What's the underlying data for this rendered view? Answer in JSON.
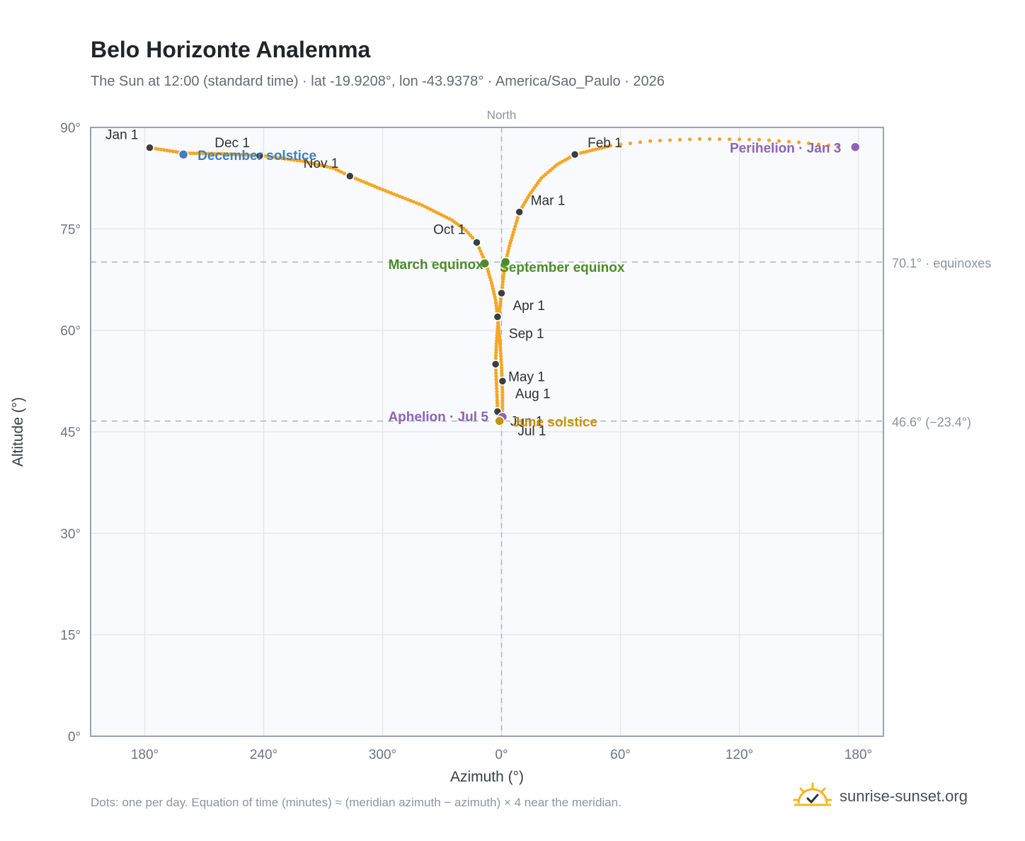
{
  "header": {
    "title": "Belo Horizonte Analemma",
    "subtitle": "The Sun at 12:00 (standard time) · lat -19.9208°, lon -43.9378° · America/Sao_Paulo · 2026"
  },
  "footer": {
    "note": "Dots: one per day. Equation of time (minutes) ≈ (meridian azimuth − azimuth) × 4 near the meridian.",
    "brand": "sunrise-sunset.org"
  },
  "colors": {
    "path": "#f5a623",
    "month_marker": "#3a3d42",
    "equinox": "#4e8b2b",
    "solstice_june": "#c9920a",
    "solstice_december": "#3f7fbf",
    "apsis": "#8e63b8",
    "plot_bg": "#f8fafd",
    "grid": "#e3e8ee",
    "frame": "#9aa3ae"
  },
  "chart_data": {
    "type": "scatter",
    "x_axis": {
      "label": "Azimuth (°)",
      "ticks": [
        "180°",
        "240°",
        "300°",
        "0°",
        "60°",
        "120°",
        "180°"
      ],
      "top_label": "North",
      "note": "azimuth measured through north; left of North = 180°–360°, right = 0°–180°"
    },
    "y_axis": {
      "label": "Altitude (°)",
      "ticks": [
        "0°",
        "15°",
        "30°",
        "45°",
        "60°",
        "75°",
        "90°"
      ],
      "range": [
        0,
        90
      ]
    },
    "reference_lines": [
      {
        "altitude": 70.1,
        "label": "70.1° · equinoxes"
      },
      {
        "altitude": 46.6,
        "label": "46.6° (−23.4°)"
      }
    ],
    "month_markers": [
      {
        "label": "Jan 1",
        "azimuth": 182.5,
        "altitude": 87.0
      },
      {
        "label": "Feb 1",
        "azimuth": 37.0,
        "altitude": 86.0
      },
      {
        "label": "Mar 1",
        "azimuth": 9.0,
        "altitude": 77.5
      },
      {
        "label": "Apr 1",
        "azimuth": 0.0,
        "altitude": 65.5
      },
      {
        "label": "May 1",
        "azimuth": 357.0,
        "altitude": 55.0
      },
      {
        "label": "Jun 1",
        "azimuth": 358.0,
        "altitude": 48.0
      },
      {
        "label": "Jul 1",
        "azimuth": 0.3,
        "altitude": 47.0
      },
      {
        "label": "Aug 1",
        "azimuth": 0.5,
        "altitude": 52.5
      },
      {
        "label": "Sep 1",
        "azimuth": 358.0,
        "altitude": 62.0
      },
      {
        "label": "Oct 1",
        "azimuth": 347.5,
        "altitude": 73.0
      },
      {
        "label": "Nov 1",
        "azimuth": 283.5,
        "altitude": 82.8
      },
      {
        "label": "Dec 1",
        "azimuth": 238.0,
        "altitude": 85.8
      }
    ],
    "events": [
      {
        "label": "Perihelion · Jan 3",
        "azimuth": 178.5,
        "altitude": 87.1,
        "kind": "apsis"
      },
      {
        "label": "Aphelion · Jul 5",
        "azimuth": 0.5,
        "altitude": 47.2,
        "kind": "apsis"
      },
      {
        "label": "March equinox",
        "azimuth": 351.5,
        "altitude": 69.9,
        "kind": "equinox"
      },
      {
        "label": "September equinox",
        "azimuth": 2.0,
        "altitude": 70.1,
        "kind": "equinox"
      },
      {
        "label": "June solstice",
        "azimuth": 359.0,
        "altitude": 46.6,
        "kind": "solstice_june"
      },
      {
        "label": "December solstice",
        "azimuth": 199.5,
        "altitude": 86.0,
        "kind": "solstice_december"
      }
    ],
    "daily_path": {
      "description": "One dot per day through the year",
      "points": [
        [
          182.5,
          87.0
        ],
        [
          200.0,
          86.2
        ],
        [
          220.0,
          86.1
        ],
        [
          240.0,
          85.8
        ],
        [
          260.0,
          85.0
        ],
        [
          275.0,
          84.0
        ],
        [
          283.5,
          82.8
        ],
        [
          300.0,
          80.8
        ],
        [
          320.0,
          78.5
        ],
        [
          335.0,
          76.3
        ],
        [
          342.0,
          74.8
        ],
        [
          347.5,
          73.0
        ],
        [
          352.0,
          70.0
        ],
        [
          355.0,
          67.0
        ],
        [
          357.0,
          64.5
        ],
        [
          358.0,
          62.0
        ],
        [
          358.8,
          59.5
        ],
        [
          359.5,
          57.0
        ],
        [
          0.0,
          54.5
        ],
        [
          0.3,
          52.5
        ],
        [
          0.5,
          50.0
        ],
        [
          0.4,
          48.0
        ],
        [
          0.3,
          47.0
        ],
        [
          359.7,
          46.6
        ],
        [
          359.0,
          46.6
        ],
        [
          358.2,
          47.0
        ],
        [
          358.0,
          48.0
        ],
        [
          357.7,
          50.5
        ],
        [
          357.0,
          55.0
        ],
        [
          357.4,
          58.0
        ],
        [
          358.3,
          61.5
        ],
        [
          359.2,
          63.5
        ],
        [
          0.0,
          65.5
        ],
        [
          1.0,
          68.0
        ],
        [
          2.0,
          70.1
        ],
        [
          4.0,
          72.5
        ],
        [
          6.0,
          74.5
        ],
        [
          9.0,
          77.5
        ],
        [
          14.0,
          80.0
        ],
        [
          20.0,
          82.5
        ],
        [
          28.0,
          84.5
        ],
        [
          37.0,
          86.0
        ],
        [
          55.0,
          87.3
        ],
        [
          75.0,
          88.0
        ],
        [
          100.0,
          88.3
        ],
        [
          130.0,
          88.2
        ],
        [
          150.0,
          87.8
        ],
        [
          170.0,
          87.2
        ]
      ]
    }
  }
}
